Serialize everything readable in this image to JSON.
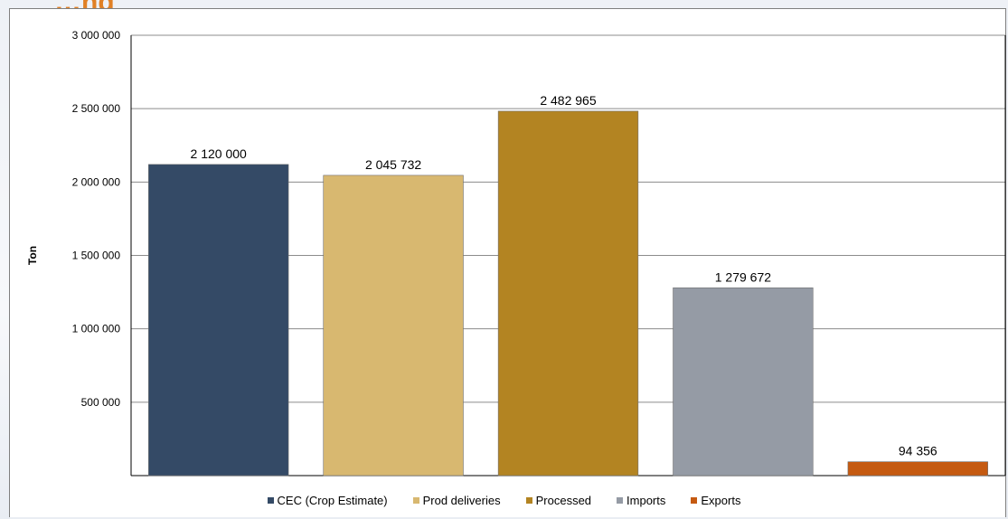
{
  "header": {
    "title": "…ng"
  },
  "chart_data": {
    "type": "bar",
    "categories": [
      "CEC (Crop Estimate)",
      "Prod deliveries",
      "Processed",
      "Imports",
      "Exports"
    ],
    "values": [
      2120000,
      2045732,
      2482965,
      1279672,
      94356
    ],
    "value_labels": [
      "2 120 000",
      "2 045 732",
      "2 482 965",
      "1 279 672",
      "94 356"
    ],
    "colors": [
      "#344a66",
      "#d8b870",
      "#b38422",
      "#959ba5",
      "#c55a11"
    ],
    "ylabel": "Ton",
    "ylim": [
      0,
      3000000
    ],
    "yticks": [
      500000,
      1000000,
      1500000,
      2000000,
      2500000,
      3000000
    ],
    "ytick_labels": [
      "500 000",
      "1 000 000",
      "1 500 000",
      "2 000 000",
      "2 500 000",
      "3 000 000"
    ],
    "grid": true,
    "legend": "bottom"
  }
}
